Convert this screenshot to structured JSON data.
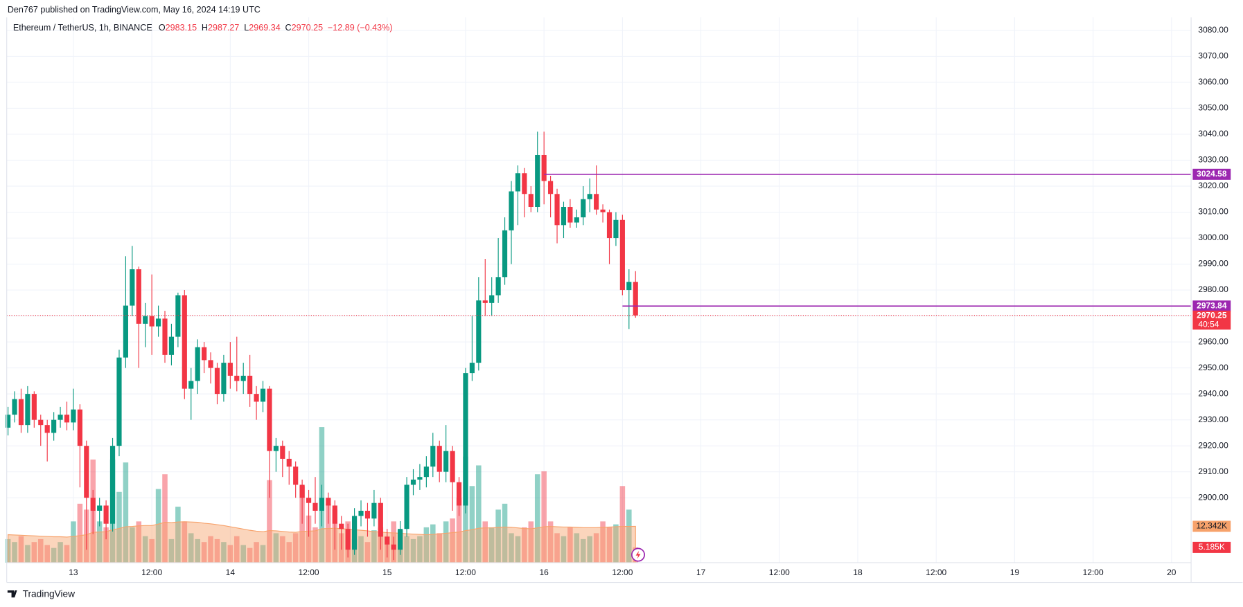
{
  "header": {
    "text": "Den767 published on TradingView.com, May 16, 2024 14:19 UTC"
  },
  "footer": {
    "brand": "TradingView"
  },
  "chart_data": {
    "type": "candlestick",
    "symbol": "Ethereum / TetherUS, 1h, BINANCE",
    "ohlc_letters": [
      "O",
      "H",
      "L",
      "C"
    ],
    "change": "−12.89 (−0.43%)",
    "countdown": "40:54",
    "up_color": "#089981",
    "down_color": "#f23645",
    "xlim": [
      -0.2,
      181
    ],
    "xticks": [
      {
        "value": 10,
        "label": "13"
      },
      {
        "value": 22,
        "label": "12:00"
      },
      {
        "value": 34,
        "label": "14"
      },
      {
        "value": 46,
        "label": "12:00"
      },
      {
        "value": 58,
        "label": "15"
      },
      {
        "value": 70,
        "label": "12:00"
      },
      {
        "value": 82,
        "label": "16"
      },
      {
        "value": 94,
        "label": "12:00"
      },
      {
        "value": 106,
        "label": "17"
      },
      {
        "value": 118,
        "label": "12:00"
      },
      {
        "value": 130,
        "label": "18"
      },
      {
        "value": 142,
        "label": "12:00"
      },
      {
        "value": 154,
        "label": "19"
      },
      {
        "value": 166,
        "label": "12:00"
      },
      {
        "value": 178,
        "label": "20"
      }
    ],
    "ylim": [
      2875,
      3085
    ],
    "yticks": [
      {
        "value": 2900,
        "label": "2900.00"
      },
      {
        "value": 2910,
        "label": "2910.00"
      },
      {
        "value": 2920,
        "label": "2920.00"
      },
      {
        "value": 2930,
        "label": "2930.00"
      },
      {
        "value": 2940,
        "label": "2940.00"
      },
      {
        "value": 2950,
        "label": "2950.00"
      },
      {
        "value": 2960,
        "label": "2960.00"
      },
      {
        "value": 2970,
        "label": "2970.00"
      },
      {
        "value": 2980,
        "label": "2980.00"
      },
      {
        "value": 2990,
        "label": "2990.00"
      },
      {
        "value": 3000,
        "label": "3000.00"
      },
      {
        "value": 3010,
        "label": "3010.00"
      },
      {
        "value": 3020,
        "label": "3020.00"
      },
      {
        "value": 3030,
        "label": "3030.00"
      },
      {
        "value": 3040,
        "label": "3040.00"
      },
      {
        "value": 3050,
        "label": "3050.00"
      },
      {
        "value": 3060,
        "label": "3060.00"
      },
      {
        "value": 3070,
        "label": "3070.00"
      },
      {
        "value": 3080,
        "label": "3080.00"
      }
    ],
    "grid": true,
    "candles": [
      [
        2927,
        2935,
        2924,
        2932
      ],
      [
        2932,
        2941,
        2929,
        2938
      ],
      [
        2938,
        2942,
        2925,
        2928
      ],
      [
        2928,
        2943,
        2925,
        2940
      ],
      [
        2940,
        2941,
        2927,
        2930
      ],
      [
        2930,
        2932,
        2920,
        2928
      ],
      [
        2928,
        2930,
        2914,
        2925
      ],
      [
        2925,
        2933,
        2922,
        2930
      ],
      [
        2930,
        2935,
        2927,
        2932
      ],
      [
        2932,
        2937,
        2926,
        2929
      ],
      [
        2929,
        2942,
        2926,
        2934
      ],
      [
        2934,
        2936,
        2904,
        2920
      ],
      [
        2920,
        2922,
        2880,
        2900
      ],
      [
        2900,
        2903,
        2886,
        2895
      ],
      [
        2895,
        2900,
        2889,
        2897
      ],
      [
        2897,
        2899,
        2884,
        2890
      ],
      [
        2890,
        2923,
        2887,
        2920
      ],
      [
        2920,
        2957,
        2916,
        2954
      ],
      [
        2954,
        2993,
        2950,
        2974
      ],
      [
        2974,
        2997,
        2970,
        2988
      ],
      [
        2988,
        2989,
        2950,
        2967
      ],
      [
        2967,
        2975,
        2958,
        2970
      ],
      [
        2970,
        2986,
        2955,
        2966
      ],
      [
        2966,
        2974,
        2962,
        2969
      ],
      [
        2969,
        2972,
        2952,
        2955
      ],
      [
        2955,
        2967,
        2951,
        2962
      ],
      [
        2962,
        2979,
        2958,
        2978
      ],
      [
        2978,
        2980,
        2938,
        2942
      ],
      [
        2942,
        2950,
        2930,
        2945
      ],
      [
        2945,
        2961,
        2940,
        2958
      ],
      [
        2958,
        2960,
        2948,
        2953
      ],
      [
        2953,
        2956,
        2944,
        2950
      ],
      [
        2950,
        2952,
        2936,
        2940
      ],
      [
        2940,
        2955,
        2937,
        2952
      ],
      [
        2952,
        2960,
        2942,
        2947
      ],
      [
        2947,
        2962,
        2941,
        2945
      ],
      [
        2945,
        2952,
        2940,
        2947
      ],
      [
        2947,
        2955,
        2935,
        2940
      ],
      [
        2940,
        2943,
        2930,
        2937
      ],
      [
        2937,
        2945,
        2933,
        2942
      ],
      [
        2942,
        2943,
        2900,
        2918
      ],
      [
        2918,
        2923,
        2910,
        2920
      ],
      [
        2920,
        2922,
        2908,
        2915
      ],
      [
        2915,
        2918,
        2905,
        2912
      ],
      [
        2912,
        2914,
        2900,
        2905
      ],
      [
        2905,
        2907,
        2890,
        2900
      ],
      [
        2900,
        2903,
        2885,
        2898
      ],
      [
        2898,
        2908,
        2890,
        2895
      ],
      [
        2895,
        2905,
        2889,
        2900
      ],
      [
        2900,
        2902,
        2890,
        2897
      ],
      [
        2897,
        2899,
        2880,
        2890
      ],
      [
        2890,
        2893,
        2880,
        2888
      ],
      [
        2888,
        2890,
        2877,
        2880
      ],
      [
        2880,
        2896,
        2878,
        2893
      ],
      [
        2893,
        2899,
        2889,
        2895
      ],
      [
        2895,
        2898,
        2885,
        2892
      ],
      [
        2892,
        2903,
        2889,
        2898
      ],
      [
        2898,
        2900,
        2880,
        2885
      ],
      [
        2885,
        2888,
        2877,
        2882
      ],
      [
        2882,
        2885,
        2876,
        2880
      ],
      [
        2880,
        2891,
        2878,
        2888
      ],
      [
        2888,
        2908,
        2885,
        2905
      ],
      [
        2905,
        2911,
        2901,
        2907
      ],
      [
        2907,
        2913,
        2903,
        2908
      ],
      [
        2908,
        2916,
        2904,
        2912
      ],
      [
        2912,
        2925,
        2908,
        2920
      ],
      [
        2920,
        2922,
        2906,
        2910
      ],
      [
        2910,
        2928,
        2906,
        2918
      ],
      [
        2918,
        2920,
        2895,
        2906
      ],
      [
        2906,
        2908,
        2893,
        2897
      ],
      [
        2897,
        2950,
        2894,
        2948
      ],
      [
        2948,
        2970,
        2945,
        2952
      ],
      [
        2952,
        2985,
        2949,
        2976
      ],
      [
        2976,
        2992,
        2970,
        2975
      ],
      [
        2975,
        2985,
        2970,
        2978
      ],
      [
        2978,
        3000,
        2975,
        2985
      ],
      [
        2985,
        3008,
        2982,
        3003
      ],
      [
        3003,
        3022,
        2990,
        3018
      ],
      [
        3018,
        3028,
        3005,
        3025
      ],
      [
        3025,
        3027,
        3008,
        3017
      ],
      [
        3017,
        3020,
        3010,
        3012
      ],
      [
        3012,
        3041,
        3010,
        3032
      ],
      [
        3032,
        3041,
        3013,
        3022
      ],
      [
        3022,
        3024,
        3008,
        3017
      ],
      [
        3017,
        3019,
        2998,
        3005
      ],
      [
        3005,
        3014,
        3000,
        3012
      ],
      [
        3012,
        3015,
        3004,
        3006
      ],
      [
        3006,
        3011,
        3004,
        3008
      ],
      [
        3008,
        3020,
        3005,
        3015
      ],
      [
        3015,
        3023,
        3010,
        3017
      ],
      [
        3017,
        3028,
        3009,
        3011
      ],
      [
        3011,
        3013,
        3006,
        3010
      ],
      [
        3010,
        3011,
        2990,
        3000
      ],
      [
        3000,
        3010,
        2997,
        3007
      ],
      [
        3007,
        3009,
        2978,
        2980
      ],
      [
        2980,
        2988,
        2965,
        2983.15
      ],
      [
        2983.15,
        2987.27,
        2969.34,
        2970.25
      ]
    ],
    "volume": {
      "lim": [
        0,
        185000
      ],
      "last_value_label": "5.185K",
      "values": [
        8000,
        7000,
        9000,
        6000,
        7000,
        8000,
        6000,
        5000,
        7000,
        6000,
        14000,
        20000,
        18000,
        35000,
        14000,
        12000,
        35000,
        24000,
        34000,
        12000,
        14000,
        9000,
        8000,
        25000,
        30000,
        8000,
        19000,
        14000,
        10000,
        8000,
        7000,
        9000,
        8000,
        7000,
        6000,
        9000,
        6000,
        5000,
        7000,
        6000,
        28000,
        10000,
        9000,
        7000,
        10000,
        26000,
        16000,
        12000,
        46000,
        20000,
        18000,
        10000,
        14000,
        8000,
        9000,
        7000,
        11000,
        12000,
        9000,
        14000,
        11000,
        9000,
        8000,
        9000,
        12000,
        13000,
        10000,
        14000,
        15000,
        22000,
        36000,
        26000,
        33000,
        14000,
        12000,
        18000,
        20000,
        10000,
        9000,
        12000,
        14000,
        30000,
        31000,
        14000,
        10000,
        9000,
        12000,
        10000,
        8000,
        9000,
        10000,
        14000,
        12000,
        13000,
        26000,
        18000,
        5185
      ]
    },
    "volume_ma": {
      "color": "#f7a26b",
      "last_value_label": "12.342K",
      "values": [
        9500,
        9400,
        9300,
        9200,
        9100,
        9000,
        8900,
        8800,
        8800,
        8700,
        8900,
        9200,
        9500,
        10300,
        10400,
        10500,
        11200,
        11600,
        12200,
        12300,
        12500,
        12600,
        12600,
        13100,
        13700,
        13600,
        13800,
        13900,
        13800,
        13700,
        13400,
        13200,
        12900,
        12600,
        12200,
        11800,
        11400,
        11000,
        10700,
        10500,
        10900,
        10800,
        10600,
        10400,
        10300,
        10600,
        10700,
        10800,
        11500,
        11600,
        11700,
        11500,
        11400,
        11200,
        11000,
        10800,
        10500,
        10400,
        10200,
        10100,
        10000,
        9800,
        9700,
        9600,
        9500,
        9600,
        9800,
        10000,
        10200,
        10400,
        10900,
        11200,
        11700,
        11800,
        11800,
        12000,
        12100,
        12000,
        11800,
        11600,
        11500,
        11800,
        12200,
        12300,
        12200,
        12100,
        12100,
        12000,
        11900,
        11900,
        11900,
        12000,
        12100,
        12200,
        12300,
        12300,
        12342
      ]
    },
    "levels": [
      {
        "value": 3024.58,
        "start": 82,
        "color": "#9c27b0"
      },
      {
        "value": 2973.84,
        "start": 94,
        "color": "#9c27b0"
      }
    ]
  }
}
